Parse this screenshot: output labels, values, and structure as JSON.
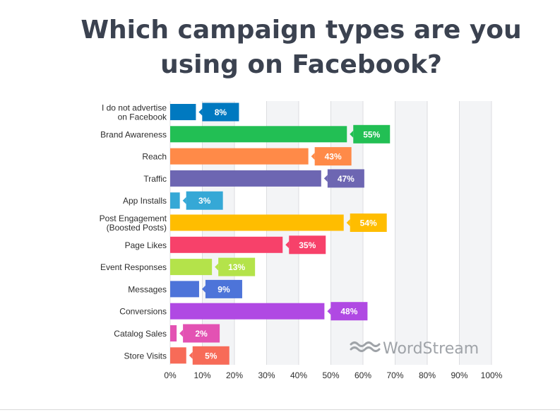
{
  "chart_data": {
    "type": "bar",
    "orientation": "horizontal",
    "title": "Which campaign types are you using on Facebook?",
    "categories": [
      "I do not advertise\non Facebook",
      "Brand Awareness",
      "Reach",
      "Traffic",
      "App Installs",
      "Post Engagement\n(Boosted Posts)",
      "Page Likes",
      "Event Responses",
      "Messages",
      "Conversions",
      "Catalog Sales",
      "Store Visits"
    ],
    "values": [
      8,
      55,
      43,
      47,
      3,
      54,
      35,
      13,
      9,
      48,
      2,
      5
    ],
    "value_labels": [
      "8%",
      "55%",
      "43%",
      "47%",
      "3%",
      "54%",
      "35%",
      "13%",
      "9%",
      "48%",
      "2%",
      "5%"
    ],
    "colors": [
      "#0079c0",
      "#22bf54",
      "#ff8a48",
      "#6d66b2",
      "#35a8d6",
      "#ffbd00",
      "#f7416a",
      "#b4e34a",
      "#4d74d9",
      "#b049e3",
      "#e352b3",
      "#f76b58"
    ],
    "xlim": [
      0,
      100
    ],
    "xticks": [
      "0%",
      "10%",
      "20%",
      "30%",
      "40%",
      "50%",
      "60%",
      "70%",
      "80%",
      "90%",
      "100%"
    ],
    "grid": true,
    "watermark": "WordStream"
  }
}
